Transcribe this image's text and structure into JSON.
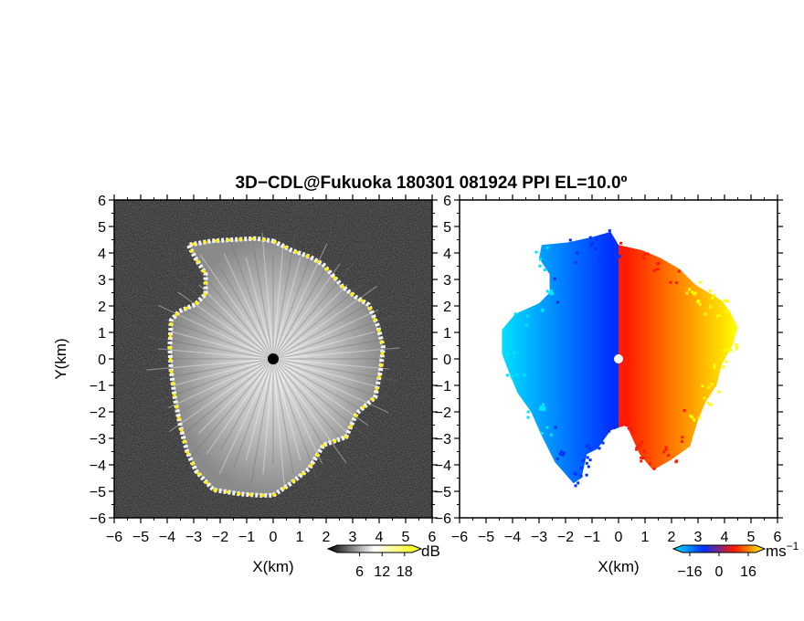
{
  "title": "3D−CDL@Fukuoka 180301 081924 PPI EL=10.0º",
  "chart_data": [
    {
      "type": "heatmap",
      "panel": "left",
      "quantity": "signal",
      "xlabel": "X(km)",
      "ylabel": "Y(km)",
      "xlim": [
        -6,
        6
      ],
      "ylim": [
        -6,
        6
      ],
      "xticks": [
        "−6",
        "−5",
        "−4",
        "−3",
        "−2",
        "−1",
        "0",
        "1",
        "2",
        "3",
        "4",
        "5",
        "6"
      ],
      "yticks": [
        "6",
        "5",
        "4",
        "3",
        "2",
        "1",
        "0",
        "−1",
        "−2",
        "−3",
        "−4",
        "−5",
        "−6"
      ],
      "colorbar": {
        "unit": "dB",
        "ticks": [
          "6",
          "12",
          "18"
        ],
        "range": [
          0,
          20
        ],
        "colors": [
          "#000000",
          "#ffffff",
          "#ffff00"
        ]
      },
      "boundary_km": [
        [
          0.0,
          4.45
        ],
        [
          0.7,
          4.1
        ],
        [
          1.4,
          3.85
        ],
        [
          1.9,
          3.55
        ],
        [
          2.6,
          2.75
        ],
        [
          3.1,
          2.35
        ],
        [
          3.6,
          2.05
        ],
        [
          3.95,
          1.25
        ],
        [
          4.15,
          0.45
        ],
        [
          4.05,
          -0.45
        ],
        [
          3.85,
          -1.45
        ],
        [
          3.15,
          -2.05
        ],
        [
          2.75,
          -2.95
        ],
        [
          1.9,
          -3.25
        ],
        [
          1.35,
          -4.15
        ],
        [
          0.6,
          -4.75
        ],
        [
          0.0,
          -5.15
        ],
        [
          -0.5,
          -5.15
        ],
        [
          -1.25,
          -5.1
        ],
        [
          -2.25,
          -4.95
        ],
        [
          -2.9,
          -4.25
        ],
        [
          -3.25,
          -3.5
        ],
        [
          -3.5,
          -2.55
        ],
        [
          -3.7,
          -1.55
        ],
        [
          -3.85,
          -0.45
        ],
        [
          -3.9,
          0.45
        ],
        [
          -3.85,
          1.45
        ],
        [
          -3.55,
          1.8
        ],
        [
          -2.95,
          2.05
        ],
        [
          -2.55,
          2.45
        ],
        [
          -2.55,
          3.2
        ],
        [
          -2.9,
          3.75
        ],
        [
          -3.2,
          4.3
        ],
        [
          -2.35,
          4.45
        ],
        [
          -1.55,
          4.5
        ],
        [
          -0.65,
          4.55
        ]
      ],
      "center_marker": [
        0,
        0
      ]
    },
    {
      "type": "heatmap",
      "panel": "right",
      "quantity": "radial velocity",
      "xlabel": "X(km)",
      "ylabel": "",
      "xlim": [
        -6,
        6
      ],
      "ylim": [
        -6,
        6
      ],
      "xticks": [
        "−6",
        "−5",
        "−4",
        "−3",
        "−2",
        "−1",
        "0",
        "1",
        "2",
        "3",
        "4",
        "5",
        "6"
      ],
      "yticks": [
        "6",
        "5",
        "4",
        "3",
        "2",
        "1",
        "0",
        "−1",
        "−2",
        "−3",
        "−4",
        "−5",
        "−6"
      ],
      "colorbar": {
        "unit": "ms",
        "unit_exp": "−1",
        "ticks": [
          "−16",
          "0",
          "16"
        ],
        "range": [
          -20,
          20
        ],
        "colors": [
          "#00e5ff",
          "#0030ff",
          "#ff1a00",
          "#ffff00"
        ]
      },
      "velocity_pattern": "negative (toward radar) for X<0, positive (away) for X>0",
      "boundary_km": [
        [
          0.0,
          4.3
        ],
        [
          0.9,
          4.1
        ],
        [
          1.6,
          3.8
        ],
        [
          2.3,
          3.4
        ],
        [
          2.9,
          2.8
        ],
        [
          3.4,
          2.5
        ],
        [
          3.9,
          2.2
        ],
        [
          4.2,
          1.8
        ],
        [
          4.5,
          1.2
        ],
        [
          4.3,
          0.5
        ],
        [
          3.9,
          -0.2
        ],
        [
          3.7,
          -1.0
        ],
        [
          3.3,
          -1.6
        ],
        [
          3.0,
          -2.3
        ],
        [
          2.7,
          -3.3
        ],
        [
          2.0,
          -3.8
        ],
        [
          1.3,
          -4.2
        ],
        [
          0.8,
          -3.6
        ],
        [
          0.3,
          -2.5
        ],
        [
          -0.3,
          -2.7
        ],
        [
          -0.8,
          -3.4
        ],
        [
          -1.2,
          -3.6
        ],
        [
          -1.4,
          -4.5
        ],
        [
          -1.7,
          -4.7
        ],
        [
          -2.4,
          -3.9
        ],
        [
          -2.9,
          -2.9
        ],
        [
          -3.3,
          -2.0
        ],
        [
          -3.8,
          -1.3
        ],
        [
          -4.1,
          -0.6
        ],
        [
          -4.4,
          0.2
        ],
        [
          -4.4,
          1.1
        ],
        [
          -3.9,
          1.7
        ],
        [
          -3.0,
          2.1
        ],
        [
          -2.6,
          2.5
        ],
        [
          -2.6,
          3.2
        ],
        [
          -3.0,
          3.8
        ],
        [
          -2.9,
          4.3
        ],
        [
          -1.9,
          4.4
        ],
        [
          -1.0,
          4.6
        ],
        [
          -0.3,
          4.8
        ]
      ]
    }
  ]
}
